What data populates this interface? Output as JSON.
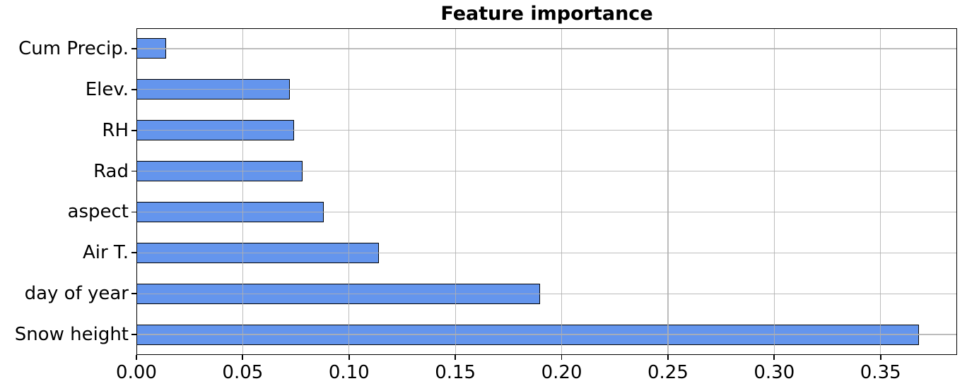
{
  "title": "Feature importance",
  "colors": {
    "bar_fill": "#6495ED",
    "bar_edge": "#000000",
    "grid": "#b0b0b0",
    "spine": "#000000",
    "background": "#ffffff",
    "text": "#000000"
  },
  "chart_data": {
    "type": "bar",
    "orientation": "horizontal",
    "title": "Feature importance",
    "categories_top_to_bottom": [
      "Cum Precip.",
      "Elev.",
      "RH",
      "Rad",
      "aspect",
      "Air T.",
      "day of year",
      "Snow height"
    ],
    "values_top_to_bottom": [
      0.014,
      0.072,
      0.074,
      0.078,
      0.088,
      0.114,
      0.19,
      0.368
    ],
    "xlabel": "",
    "ylabel": "",
    "xlim": [
      0,
      0.386
    ],
    "xticks": [
      0.0,
      0.05,
      0.1,
      0.15,
      0.2,
      0.25,
      0.3,
      0.35
    ],
    "xtick_labels": [
      "0.00",
      "0.05",
      "0.10",
      "0.15",
      "0.20",
      "0.25",
      "0.30",
      "0.35"
    ],
    "grid": true,
    "grid_above_bars": true,
    "legend": null,
    "bar_height_fraction": 0.5
  }
}
